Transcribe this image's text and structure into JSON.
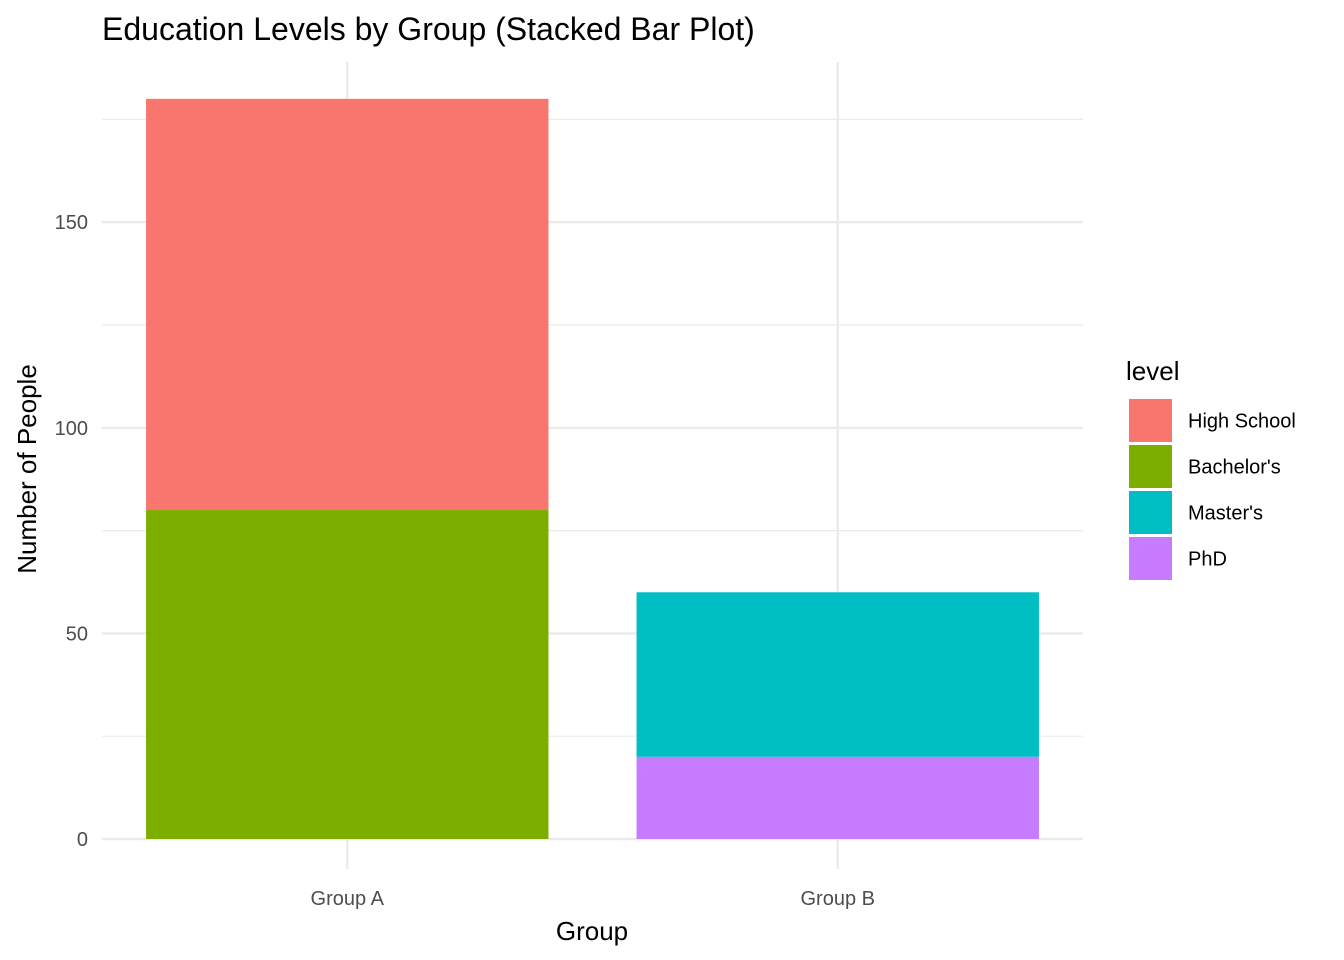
{
  "chart_data": {
    "type": "bar",
    "stacked": true,
    "title": "Education Levels by Group (Stacked Bar Plot)",
    "xlabel": "Group",
    "ylabel": "Number of People",
    "categories": [
      "Group A",
      "Group B"
    ],
    "ylim": [
      0,
      190
    ],
    "yticks": [
      0,
      50,
      100,
      150
    ],
    "ytick_labels": [
      "0",
      "50",
      "100",
      "150"
    ],
    "grid": true,
    "legend": {
      "title": "level",
      "position": "right"
    },
    "series": [
      {
        "name": "High School",
        "color": "#F8766D",
        "values": [
          100,
          0
        ]
      },
      {
        "name": "Bachelor's",
        "color": "#7CAE00",
        "values": [
          80,
          0
        ]
      },
      {
        "name": "Master's",
        "color": "#00BFC4",
        "values": [
          0,
          40
        ]
      },
      {
        "name": "PhD",
        "color": "#C77CFF",
        "values": [
          0,
          20
        ]
      }
    ],
    "stack_order_bottom_to_top": [
      "PhD",
      "Master's",
      "Bachelor's",
      "High School"
    ]
  },
  "colors": {
    "background": "#ffffff",
    "gridline": "#ebebeb",
    "tick_text": "#4d4d4d"
  }
}
